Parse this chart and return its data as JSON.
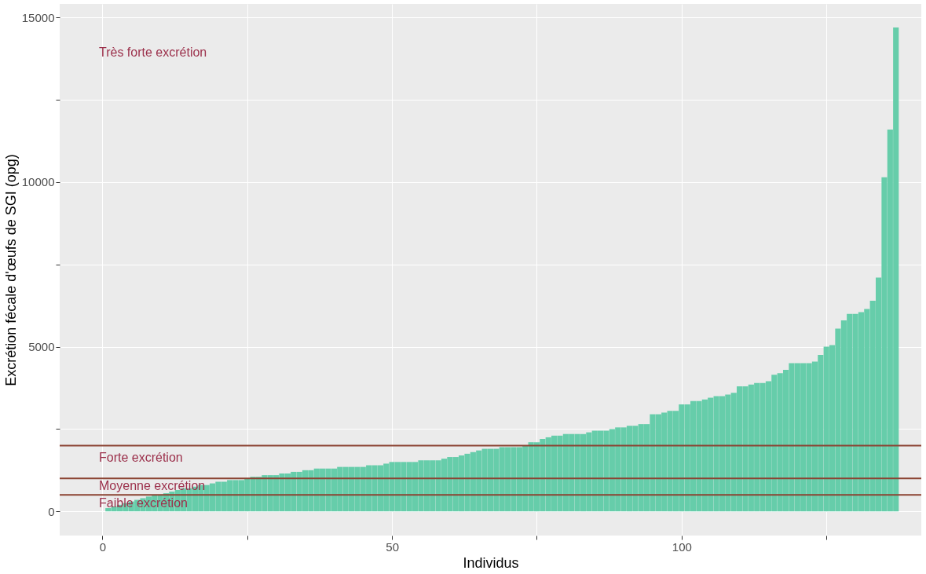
{
  "chart_data": {
    "type": "bar",
    "xlabel": "Individus",
    "ylabel": "Excrétion fécale d'œufs de SGI (opg)",
    "x": [
      1,
      2,
      3,
      4,
      5,
      6,
      7,
      8,
      9,
      10,
      11,
      12,
      13,
      14,
      15,
      16,
      17,
      18,
      19,
      20,
      21,
      22,
      23,
      24,
      25,
      26,
      27,
      28,
      29,
      30,
      31,
      32,
      33,
      34,
      35,
      36,
      37,
      38,
      39,
      40,
      41,
      42,
      43,
      44,
      45,
      46,
      47,
      48,
      49,
      50,
      51,
      52,
      53,
      54,
      55,
      56,
      57,
      58,
      59,
      60,
      61,
      62,
      63,
      64,
      65,
      66,
      67,
      68,
      69,
      70,
      71,
      72,
      73,
      74,
      75,
      76,
      77,
      78,
      79,
      80,
      81,
      82,
      83,
      84,
      85,
      86,
      87,
      88,
      89,
      90,
      91,
      92,
      93,
      94,
      95,
      96,
      97,
      98,
      99,
      100,
      101,
      102,
      103,
      104,
      105,
      106,
      107,
      108,
      109,
      110,
      111,
      112,
      113,
      114,
      115,
      116,
      117,
      118,
      119,
      120,
      121,
      122,
      123,
      124,
      125,
      126,
      127,
      128,
      129,
      130,
      131,
      132,
      133,
      134,
      135,
      136,
      137
    ],
    "series": [
      {
        "color": "#66cdaa",
        "values": [
          100,
          150,
          200,
          250,
          300,
          350,
          400,
          450,
          500,
          500,
          550,
          600,
          650,
          700,
          700,
          750,
          800,
          800,
          850,
          900,
          900,
          950,
          950,
          950,
          1000,
          1050,
          1050,
          1100,
          1100,
          1100,
          1150,
          1150,
          1200,
          1200,
          1250,
          1250,
          1300,
          1300,
          1300,
          1300,
          1350,
          1350,
          1350,
          1350,
          1350,
          1400,
          1400,
          1400,
          1450,
          1500,
          1500,
          1500,
          1500,
          1500,
          1550,
          1550,
          1550,
          1550,
          1600,
          1650,
          1650,
          1700,
          1750,
          1800,
          1850,
          1900,
          1900,
          1900,
          1950,
          1950,
          1950,
          1950,
          2000,
          2100,
          2100,
          2200,
          2250,
          2300,
          2300,
          2350,
          2350,
          2350,
          2350,
          2400,
          2450,
          2450,
          2450,
          2500,
          2550,
          2550,
          2600,
          2600,
          2650,
          2650,
          2950,
          2950,
          3000,
          3050,
          3050,
          3250,
          3250,
          3350,
          3350,
          3400,
          3450,
          3500,
          3500,
          3550,
          3600,
          3800,
          3800,
          3850,
          3900,
          3900,
          3950,
          4150,
          4200,
          4300,
          4500,
          4500,
          4500,
          4500,
          4550,
          4750,
          5000,
          5050,
          5550,
          5800,
          6000,
          6000,
          6050,
          6150,
          6400,
          7100,
          10150,
          11600,
          14700
        ]
      }
    ],
    "xlim": [
      -6.7,
      140.7
    ],
    "ylim": [
      -734,
      15414
    ],
    "xticks": [
      0,
      {
        "value": 25,
        "label": null
      },
      50,
      {
        "value": 75,
        "label": null
      },
      100,
      {
        "value": 125,
        "label": null
      }
    ],
    "yticks": [
      0,
      {
        "value": 2500,
        "label": null
      },
      5000,
      {
        "value": 7500,
        "label": null
      },
      10000,
      {
        "value": 12500,
        "label": null
      },
      15000
    ],
    "grid": true,
    "ref_lines": [
      {
        "axis": "y",
        "value": 500,
        "color": "#8b4332"
      },
      {
        "axis": "y",
        "value": 1000,
        "color": "#8b4332"
      },
      {
        "axis": "y",
        "value": 2000,
        "color": "#8b4332"
      }
    ],
    "annotations": [
      "Très forte excrétion",
      "Forte excrétion",
      "Moyenne excrétion",
      "Faible excrétion"
    ]
  }
}
